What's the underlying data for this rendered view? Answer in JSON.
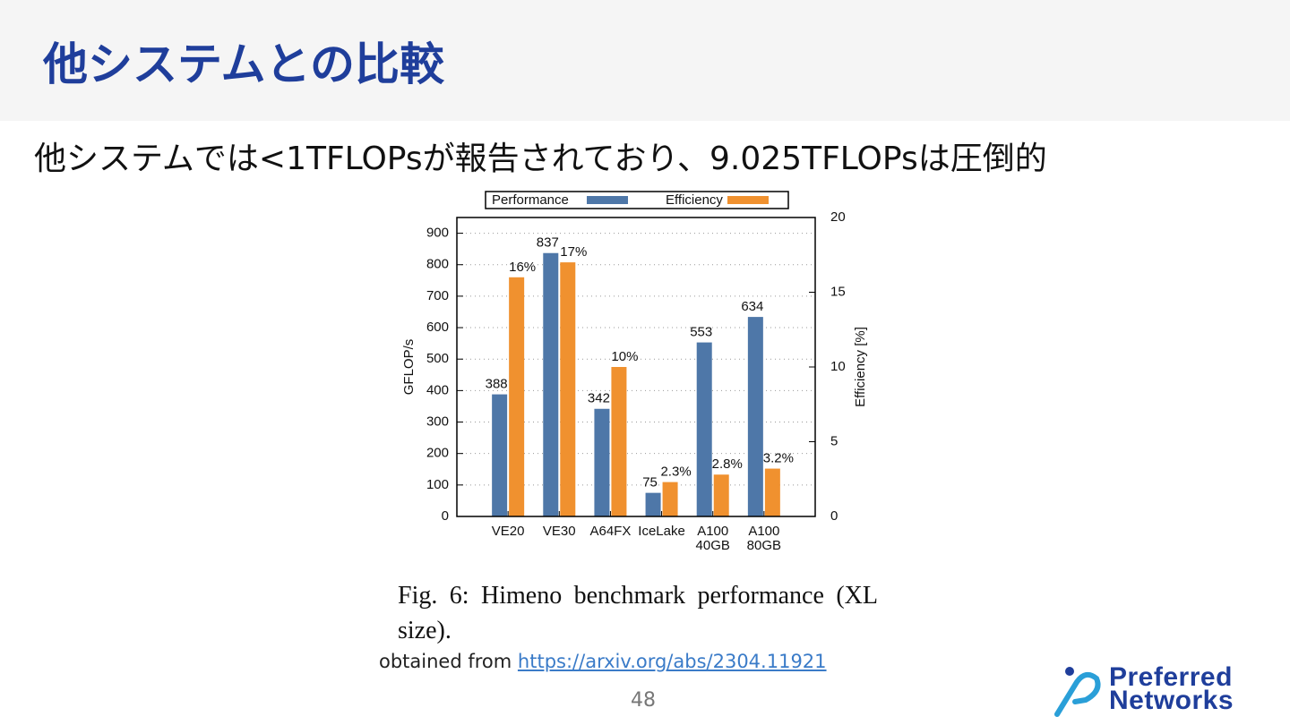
{
  "header": {
    "title": "他システムとの比較"
  },
  "subtitle": "他システムでは<1TFLOPsが報告されており、9.025TFLOPsは圧倒的",
  "chart_data": {
    "type": "bar",
    "categories": [
      "VE20",
      "VE30",
      "A64FX",
      "IceLake",
      "A100\n40GB",
      "A100\n80GB"
    ],
    "series": [
      {
        "name": "Performance",
        "color": "#4e77a8",
        "values": [
          388,
          837,
          342,
          75,
          553,
          634
        ]
      },
      {
        "name": "Efficiency",
        "color": "#f0912f",
        "axis": "y2",
        "values": [
          16,
          17,
          10,
          2.3,
          2.8,
          3.2
        ],
        "value_labels": [
          "16%",
          "17%",
          "10%",
          "2.3%",
          "2.8%",
          "3.2%"
        ]
      }
    ],
    "ylabel": "GFLOP/s",
    "y2label": "Efficiency [%]",
    "ylim": [
      0,
      950
    ],
    "yticks": [
      0,
      100,
      200,
      300,
      400,
      500,
      600,
      700,
      800,
      900
    ],
    "y2lim": [
      0,
      20
    ],
    "y2ticks": [
      0,
      5,
      10,
      15,
      20
    ],
    "grid": true,
    "legend": "top"
  },
  "caption": "Fig. 6: Himeno benchmark performance (XL size).",
  "source": {
    "prefix": "obtained from",
    "link": "https://arxiv.org/abs/2304.11921"
  },
  "page_number": "48",
  "logo": [
    "Preferred",
    "Networks"
  ]
}
